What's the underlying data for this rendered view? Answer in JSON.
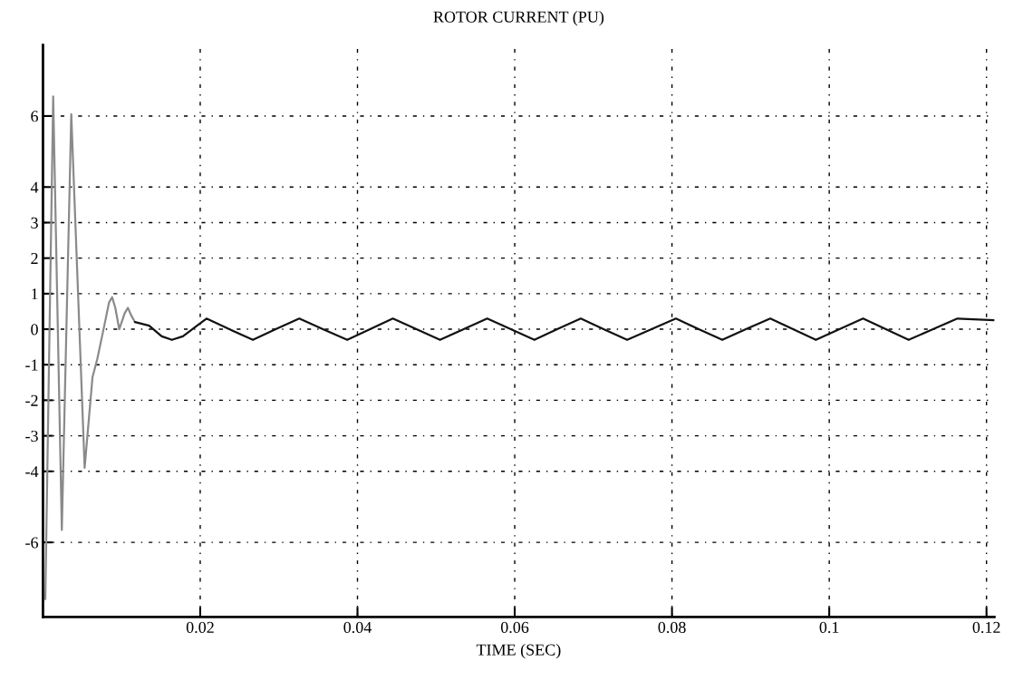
{
  "chart_data": {
    "type": "line",
    "title": "ROTOR CURRENT (PU)",
    "xlabel": "TIME (SEC)",
    "series": [
      {
        "color": "#8a8a8a",
        "x": [
          0.0003,
          0.0013,
          0.0024,
          0.0036,
          0.0053,
          0.0063,
          0.0069,
          0.0078,
          0.0084,
          0.0088,
          0.0092,
          0.0097,
          0.0104,
          0.0108,
          0.0112,
          0.0117
        ],
        "values": [
          -7.6,
          6.55,
          -5.65,
          6.05,
          -3.9,
          -1.35,
          -0.85,
          0.1,
          0.75,
          0.9,
          0.6,
          0,
          0.45,
          0.6,
          0.4,
          0.2
        ]
      },
      {
        "color": "#111111",
        "x": [
          0.0117,
          0.0135,
          0.0151,
          0.0164,
          0.0178,
          0.0196,
          0.0208,
          0.0237,
          0.0267,
          0.0296,
          0.0326,
          0.0356,
          0.0387,
          0.0416,
          0.0445,
          0.0475,
          0.0505,
          0.0535,
          0.0565,
          0.0595,
          0.0625,
          0.0654,
          0.0684,
          0.0713,
          0.0743,
          0.0774,
          0.0805,
          0.0834,
          0.0864,
          0.0894,
          0.0925,
          0.0954,
          0.0983,
          0.1013,
          0.1043,
          0.1072,
          0.1101,
          0.1132,
          0.1163,
          0.121
        ],
        "values": [
          0.2,
          0.1,
          -0.2,
          -0.3,
          -0.2,
          0.1,
          0.3,
          0,
          -0.3,
          0,
          0.3,
          0,
          -0.3,
          0,
          0.3,
          0,
          -0.3,
          0,
          0.3,
          0,
          -0.3,
          0,
          0.3,
          0,
          -0.3,
          0,
          0.3,
          0,
          -0.3,
          0,
          0.3,
          0,
          -0.3,
          0,
          0.3,
          0,
          -0.3,
          0,
          0.3,
          0.25
        ]
      }
    ],
    "xlim": [
      0,
      0.121
    ],
    "xticks": [
      0.02,
      0.04,
      0.06,
      0.08,
      0.1,
      0.12
    ],
    "ylim": [
      -8.1,
      8
    ],
    "yticks": [
      6,
      4,
      3,
      2,
      1,
      0,
      -1,
      -2,
      -3,
      -4,
      -6
    ],
    "grid": true,
    "legend": false,
    "line_style": "solid",
    "marker": "none"
  }
}
